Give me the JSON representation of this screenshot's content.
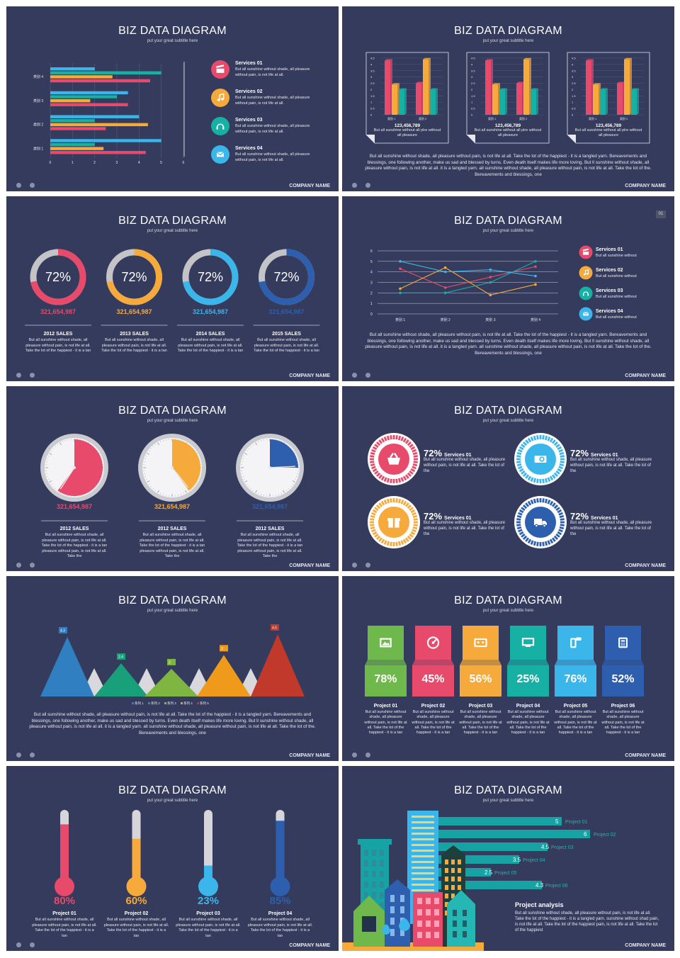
{
  "common": {
    "title": "BIZ DATA DIAGRAM",
    "subtitle": "put your great subtitle here",
    "company": "COMPANY NAME"
  },
  "colors": {
    "bg": "#353b5c",
    "red": "#e84a6b",
    "orange": "#f6aa3c",
    "teal": "#17b0a4",
    "blue": "#3bb6ea",
    "darkblue": "#2d5fae",
    "green": "#6fb84b"
  },
  "s1": {
    "chart_data": {
      "type": "bar",
      "orientation": "horizontal",
      "categories": [
        "类别 1",
        "类别 2",
        "类别 3",
        "类别 4"
      ],
      "series": [
        {
          "color": "#e84a6b",
          "values": [
            4.3,
            2.5,
            3.5,
            4.5
          ]
        },
        {
          "color": "#f6aa3c",
          "values": [
            2.4,
            4.4,
            1.8,
            2.8
          ]
        },
        {
          "color": "#17b0a4",
          "values": [
            2.0,
            2.0,
            3.0,
            5.0
          ]
        },
        {
          "color": "#3bb6ea",
          "values": [
            5.0,
            4.0,
            3.5,
            2.0
          ]
        }
      ],
      "xlim": [
        0,
        6
      ],
      "xticks": [
        "0",
        "1",
        "2",
        "3",
        "4",
        "5",
        "6"
      ]
    },
    "services": [
      {
        "title": "Services 01",
        "desc": "But all sunshine without shade, all pleasure without pain, is not life at all.",
        "icon": "clapper-icon",
        "color": "#e84a6b"
      },
      {
        "title": "Services 02",
        "desc": "But all sunshine without shade, all pleasure without pain, is not life at all.",
        "icon": "music-note-icon",
        "color": "#f6aa3c"
      },
      {
        "title": "Services 03",
        "desc": "But all sunshine without shade, all pleasure without pain, is not life at all.",
        "icon": "headphones-icon",
        "color": "#17b0a4"
      },
      {
        "title": "Services 04",
        "desc": "But all sunshine without shade, all pleasure without pain, is not life at all.",
        "icon": "mail-icon",
        "color": "#3bb6ea"
      }
    ]
  },
  "s2": {
    "chart_data": [
      {
        "type": "bar3d",
        "categories": [
          "类别 1",
          "类别 2"
        ],
        "series": [
          {
            "color": "#e84a6b",
            "values": [
              4.3,
              2.5
            ]
          },
          {
            "color": "#f6aa3c",
            "values": [
              2.4,
              4.4
            ]
          },
          {
            "color": "#17b0a4",
            "values": [
              2.0,
              2.0
            ]
          }
        ],
        "ylim": [
          0,
          4.5
        ],
        "yticks": [
          "0",
          "0.5",
          "1",
          "1.5",
          "2",
          "2.5",
          "3",
          "3.5",
          "4",
          "4.5"
        ]
      },
      {
        "type": "bar3d",
        "categories": [
          "类别 1",
          "类别 2"
        ],
        "series": [
          {
            "color": "#e84a6b",
            "values": [
              4.3,
              2.5
            ]
          },
          {
            "color": "#f6aa3c",
            "values": [
              2.4,
              4.4
            ]
          },
          {
            "color": "#17b0a4",
            "values": [
              2.0,
              2.0
            ]
          }
        ],
        "ylim": [
          0,
          4.5
        ],
        "yticks": [
          "0",
          "0.5",
          "1",
          "1.5",
          "2",
          "2.5",
          "3",
          "3.5",
          "4",
          "4.5"
        ]
      },
      {
        "type": "bar3d",
        "categories": [
          "类别 1",
          "类别 2"
        ],
        "series": [
          {
            "color": "#e84a6b",
            "values": [
              4.3,
              2.5
            ]
          },
          {
            "color": "#f6aa3c",
            "values": [
              2.4,
              4.4
            ]
          },
          {
            "color": "#17b0a4",
            "values": [
              2.0,
              2.0
            ]
          }
        ],
        "ylim": [
          0,
          4.5
        ],
        "yticks": [
          "0",
          "0.5",
          "1",
          "1.5",
          "2",
          "2.5",
          "3",
          "3.5",
          "4",
          "4.5"
        ]
      }
    ],
    "captions": [
      {
        "value": "123,456,789",
        "desc": "But all sunshine without all plre without all pleasure"
      },
      {
        "value": "123,456,789",
        "desc": "But all sunshine without all plre without all pleasure"
      },
      {
        "value": "123,456,789",
        "desc": "But all sunshine without all plre without all pleasure"
      }
    ],
    "paragraph": "But all sunshine without shade, all pleasure without pain, is not life at all. Take the lot of the happiest - it is a tangled yarn. Bereavements and blessings, one following another, make us sad and blessed by turns. Even death itself makes life more loving. But ll sunshine without shade, all pleasure without pain, is not life at all. it is a tangled yarn. all sunshine without shade, all pleasure without pain, is not life at all. Take the lot of the. Bereavements and blessings, one"
  },
  "s3": {
    "rings": [
      {
        "percent": 72,
        "label": "72%",
        "value": "321,654,987",
        "color": "#e84a6b",
        "title": "2012 SALES",
        "desc": "But all sunshine without shade, all pleasure without pain, is not life at all. Take the lot of the happiest - it is a tan"
      },
      {
        "percent": 72,
        "label": "72%",
        "value": "321,654,987",
        "color": "#f6aa3c",
        "title": "2013 SALES",
        "desc": "But all sunshine without shade, all pleasure without pain, is not life at all. Take the lot of the happiest - it is a tan"
      },
      {
        "percent": 72,
        "label": "72%",
        "value": "321,654,987",
        "color": "#3bb6ea",
        "title": "2014 SALES",
        "desc": "But all sunshine without shade, all pleasure without pain, is not life at all. Take the lot of the happiest - it is a tan"
      },
      {
        "percent": 72,
        "label": "72%",
        "value": "321,654,987",
        "color": "#2d5fae",
        "title": "2015 SALES",
        "desc": "But all sunshine without shade, all pleasure without pain, is not life at all. Take the lot of the happiest - it is a tan"
      }
    ]
  },
  "s4": {
    "page_badge": "01",
    "chart_data": {
      "type": "line",
      "categories": [
        "类别 1",
        "类别 2",
        "类别 3",
        "类别 4"
      ],
      "series": [
        {
          "color": "#e84a6b",
          "values": [
            4.3,
            2.5,
            3.5,
            4.5
          ]
        },
        {
          "color": "#f6aa3c",
          "values": [
            2.4,
            4.4,
            1.8,
            2.8
          ]
        },
        {
          "color": "#17b0a4",
          "values": [
            2.0,
            2.0,
            3.0,
            5.0
          ]
        },
        {
          "color": "#3bb6ea",
          "values": [
            5.0,
            4.0,
            4.2,
            3.6
          ]
        }
      ],
      "ylim": [
        0,
        6
      ],
      "yticks": [
        "0",
        "1",
        "2",
        "3",
        "4",
        "5",
        "6"
      ]
    },
    "services": [
      {
        "title": "Services 01",
        "desc": "But all sunshine without",
        "icon": "clapper-icon",
        "color": "#e84a6b"
      },
      {
        "title": "Services 02",
        "desc": "But all sunshine without",
        "icon": "music-note-icon",
        "color": "#f6aa3c"
      },
      {
        "title": "Services 03",
        "desc": "But all sunshine without",
        "icon": "headphones-icon",
        "color": "#17b0a4"
      },
      {
        "title": "Services 04",
        "desc": "But all sunshine without",
        "icon": "mail-icon",
        "color": "#3bb6ea"
      }
    ],
    "paragraph": "But all sunshine without shade, all pleasure without pain, is not life at all. Take the lot of the happiest - it is a tangled yarn. Bereavements and blessings, one following another, make us sad and blessed by turns. Even death itself makes life more loving. But ll sunshine without shade, all pleasure without pain, is not life at all. it is a tangled yarn. all sunshine without shade, all pleasure without pain, is not life at all. Take the lot of the. Bereavements and blessings, one"
  },
  "s5": {
    "clocks": [
      {
        "fraction": 0.6,
        "color": "#e84a6b",
        "value": "321,654,987",
        "title": "2012 SALES",
        "desc": "But all sunshine without shade, all pleasure without pain, is not life at all. Take the lot of the happiest - it is a tan pleasure without pain, is not life at all. Take the"
      },
      {
        "fraction": 0.4,
        "color": "#f6aa3c",
        "value": "321,654,987",
        "title": "2012 SALES",
        "desc": "But all sunshine without shade, all pleasure without pain, is not life at all. Take the lot of the happiest - it is a tan pleasure without pain, is not life at all. Take the"
      },
      {
        "fraction": 0.25,
        "color": "#2d5fae",
        "value": "321,654,987",
        "title": "2012 SALES",
        "desc": "But all sunshine without shade, all pleasure without pain, is not life at all. Take the lot of the happiest - it is a tan pleasure without pain, is not life at all. Take the"
      }
    ]
  },
  "s6": {
    "items": [
      {
        "percent": "72%",
        "title": "Services 01",
        "desc": "But all sunshine without shade, all pleasure without pain, is not life at all. Take the lot of the",
        "color": "#e84a6b",
        "icon": "basket-icon"
      },
      {
        "percent": "72%",
        "title": "Services 01",
        "desc": "But all sunshine without shade, all pleasure without pain, is not life at all. Take the lot of the",
        "color": "#3bb6ea",
        "icon": "money-card-icon"
      },
      {
        "percent": "72%",
        "title": "Services 01",
        "desc": "But all sunshine without shade, all pleasure without pain, is not life at all. Take the lot of the",
        "color": "#f6aa3c",
        "icon": "gift-icon"
      },
      {
        "percent": "72%",
        "title": "Services 01",
        "desc": "But all sunshine without shade, all pleasure without pain, is not life at all. Take the lot of the",
        "color": "#2d5fae",
        "icon": "truck-24h-icon"
      }
    ]
  },
  "s7": {
    "chart_data": {
      "type": "area",
      "style": "triangles",
      "categories": [
        "系列 1",
        "系列 2",
        "系列 3",
        "系列 4",
        "系列 5"
      ],
      "values": [
        4.3,
        2.4,
        2,
        3,
        4.5
      ],
      "labels": [
        "4.3",
        "2.4",
        "2",
        "3",
        "4.5"
      ],
      "colors": [
        "#2f7fc1",
        "#17a07a",
        "#7fb541",
        "#ef9a1a",
        "#c0392b"
      ],
      "ylim": [
        0,
        4.5
      ]
    },
    "paragraph": "But all sunshine without shade, all pleasure without pain, is not life at all. Take the lot of the happiest - it is a tangled yarn. Bereavements and blessings, one following another, make us sad and blessed by turns. Even death itself makes life more loving. But ll sunshine without shade, all pleasure without pain, is not life at all. it is a tangled yarn. all sunshine without shade, all pleasure without pain, is not life at all. Take the lot of the. Bereavements and blessings, one"
  },
  "s8": {
    "projects": [
      {
        "percent": "78%",
        "title": "Project 01",
        "desc": "But all sunshine without shade, all pleasure without pain, is not life at all. Take the lot of the happiest - it is a tan",
        "top": "#6fb84b",
        "icon": "picture-icon",
        "iconbg": "#6fb84b"
      },
      {
        "percent": "45%",
        "title": "Project 02",
        "desc": "But all sunshine without shade, all pleasure without pain, is not life at all. Take the lot of the happiest - it is a tan",
        "top": "#e84a6b",
        "icon": "disc-icon",
        "iconbg": "#e84a6b"
      },
      {
        "percent": "56%",
        "title": "Project 03",
        "desc": "But all sunshine without shade, all pleasure without pain, is not life at all. Take the lot of the happiest - it is a tan",
        "top": "#f6aa3c",
        "icon": "cassette-icon",
        "iconbg": "#f6aa3c"
      },
      {
        "percent": "25%",
        "title": "Project 04",
        "desc": "But all sunshine without shade, all pleasure without pain, is not life at all. Take the lot of the happiest - it is a tan",
        "top": "#17b0a4",
        "icon": "monitor-icon",
        "iconbg": "#17b0a4"
      },
      {
        "percent": "76%",
        "title": "Project 05",
        "desc": "But all sunshine without shade, all pleasure without pain, is not life at all. Take the lot of the happiest - it is a tan",
        "top": "#3bb6ea",
        "icon": "phone-sms-icon",
        "iconbg": "#3bb6ea"
      },
      {
        "percent": "52%",
        "title": "Project 06",
        "desc": "But all sunshine without shade, all pleasure without pain, is not life at all. Take the lot of the happiest - it is a tan",
        "top": "#2d5fae",
        "icon": "telephone-icon",
        "iconbg": "#2d5fae"
      }
    ]
  },
  "s9": {
    "thermometers": [
      {
        "fraction": 0.8,
        "label": "80%",
        "color": "#e84a6b",
        "title": "Project 01",
        "desc": "But all sunshine without shade, all pleasure without pain, is not life at all. Take the lot of the happiest - it is a tan"
      },
      {
        "fraction": 0.6,
        "label": "60%",
        "color": "#f6aa3c",
        "title": "Project 02",
        "desc": "But all sunshine without shade, all pleasure without pain, is not life at all. Take the lot of the happiest - it is a tan"
      },
      {
        "fraction": 0.23,
        "label": "23%",
        "color": "#3bb6ea",
        "title": "Project 03",
        "desc": "But all sunshine without shade, all pleasure without pain, is not life at all. Take the lot of the happiest - it is a tan"
      },
      {
        "fraction": 0.85,
        "label": "85%",
        "color": "#2d5fae",
        "title": "Project 04",
        "desc": "But all sunshine without shade, all pleasure without pain, is not life at all. Take the lot of the happiest - it is a tan"
      }
    ]
  },
  "s10": {
    "chart_data": {
      "type": "bar",
      "orientation": "horizontal",
      "categories": [
        "Project 01",
        "Project 02",
        "Project 03",
        "Project 04",
        "Project 05",
        "Project 06"
      ],
      "values": [
        5,
        6,
        4.5,
        3.5,
        2.5,
        4.3
      ],
      "labels": [
        "5",
        "6",
        "4.5",
        "3.5",
        "2.5",
        "4.3"
      ],
      "color": "#17a2a3",
      "xlim": [
        0,
        6
      ]
    },
    "analysis_title": "Project analysis",
    "analysis_desc": "But all sunshine without shade, all pleasure without pain, is not life at all. Take the lot of the happiest - it is a tangled yarn. sunshine without shad pain, is not life at all. Take the lot of the happiest pain, is not life at all. Take the lot of the happiest"
  }
}
